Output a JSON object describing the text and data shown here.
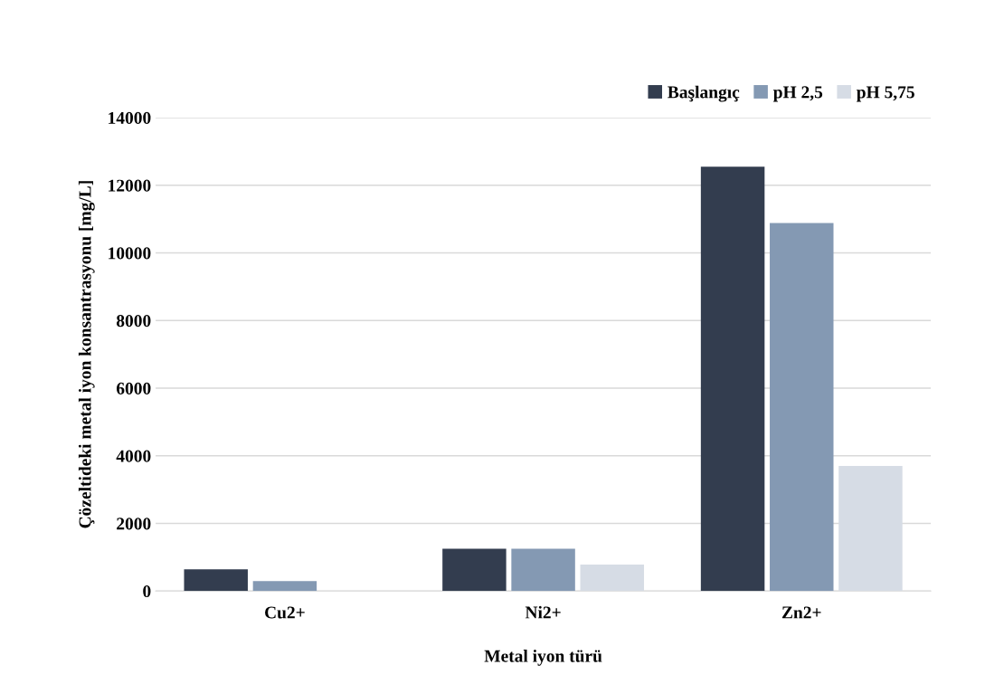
{
  "chart_data": {
    "type": "bar",
    "xlabel": "Metal iyon türü",
    "ylabel": "Çözeltideki metal iyon konsantrasyonu [mg/L]",
    "categories": [
      "Cu2+",
      "Ni2+",
      "Zn2+"
    ],
    "series": [
      {
        "name": "Başlangıç",
        "color": "#333d4f",
        "values": [
          640,
          1250,
          12550
        ]
      },
      {
        "name": "pH 2,5",
        "color": "#8499b3",
        "values": [
          290,
          1250,
          10880
        ]
      },
      {
        "name": "pH 5,75",
        "color": "#d6dce5",
        "values": [
          0,
          780,
          3700
        ]
      }
    ],
    "ylim": [
      0,
      14000
    ],
    "yticks": [
      0,
      2000,
      4000,
      6000,
      8000,
      10000,
      12000,
      14000
    ],
    "grid": "y",
    "legend": "top right"
  }
}
